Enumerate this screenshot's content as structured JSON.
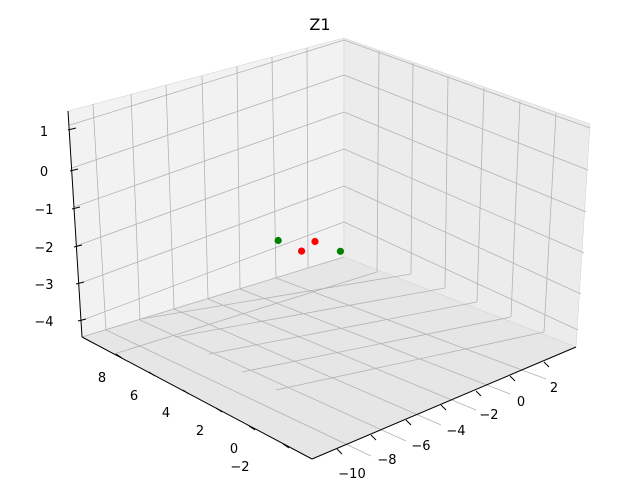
{
  "chart_data": {
    "type": "scatter",
    "projection": "3d",
    "title": "Z1",
    "xlabel": "",
    "ylabel": "",
    "zlabel": "",
    "grid": true,
    "x_ticks": [
      "−10",
      "−8",
      "−6",
      "−4",
      "−2",
      "0",
      "2"
    ],
    "y_ticks": [
      "−2",
      "0",
      "2",
      "4",
      "6",
      "8"
    ],
    "z_ticks": [
      "−4",
      "−3",
      "−2",
      "−1",
      "0",
      "1"
    ],
    "series": [
      {
        "color": "#ff0000",
        "points": [
          {
            "x": -4.4,
            "y": 3.2,
            "z": -1.7
          },
          {
            "x": -4.9,
            "y": 3.4,
            "z": -1.9
          }
        ]
      },
      {
        "color": "#008000",
        "points": [
          {
            "x": -5.6,
            "y": 3.9,
            "z": -1.6
          },
          {
            "x": -3.6,
            "y": 2.7,
            "z": -2.0
          }
        ]
      }
    ]
  }
}
